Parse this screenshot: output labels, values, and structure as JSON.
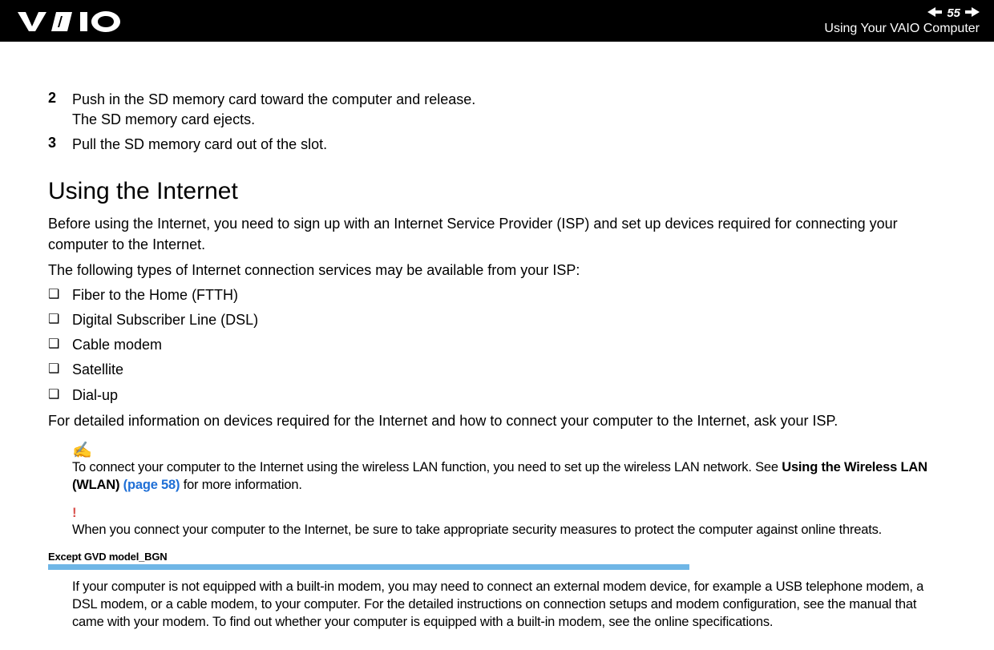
{
  "header": {
    "page_number": "55",
    "subtitle": "Using Your VAIO Computer"
  },
  "colors": {
    "header_bg": "#000000",
    "header_fg": "#ffffff",
    "body_bg": "#ffffff",
    "body_fg": "#000000",
    "link": "#1f6fd6",
    "exclamation": "#d9534f",
    "blue_bar": "#6fb6e6"
  },
  "steps": [
    {
      "num": "2",
      "text": "Push in the SD memory card toward the computer and release.\nThe SD memory card ejects."
    },
    {
      "num": "3",
      "text": "Pull the SD memory card out of the slot."
    }
  ],
  "section": {
    "heading": "Using the Internet",
    "intro1": "Before using the Internet, you need to sign up with an Internet Service Provider (ISP) and set up devices required for connecting your computer to the Internet.",
    "intro2": "The following types of Internet connection services may be available from your ISP:",
    "bullets": [
      "Fiber to the Home (FTTH)",
      "Digital Subscriber Line (DSL)",
      "Cable modem",
      "Satellite",
      "Dial-up"
    ],
    "after_bullets": "For detailed information on devices required for the Internet and how to connect your computer to the Internet, ask your ISP."
  },
  "note_pen": {
    "pre": "To connect your computer to the Internet using the wireless LAN function, you need to set up the wireless LAN network. See ",
    "bold": "Using the Wireless LAN (WLAN)",
    "link": " (page 58)",
    "post": " for more information."
  },
  "note_warn": {
    "icon": "!",
    "text": "When you connect your computer to the Internet, be sure to take appropriate security measures to protect the computer against online threats."
  },
  "model_section": {
    "label": "Except GVD model_BGN",
    "text": "If your computer is not equipped with a built-in modem, you may need to connect an external modem device, for example a USB telephone modem, a DSL modem, or a cable modem, to your computer. For the detailed instructions on connection setups and modem configuration, see the manual that came with your modem. To find out whether your computer is equipped with a built-in modem, see the online specifications."
  }
}
